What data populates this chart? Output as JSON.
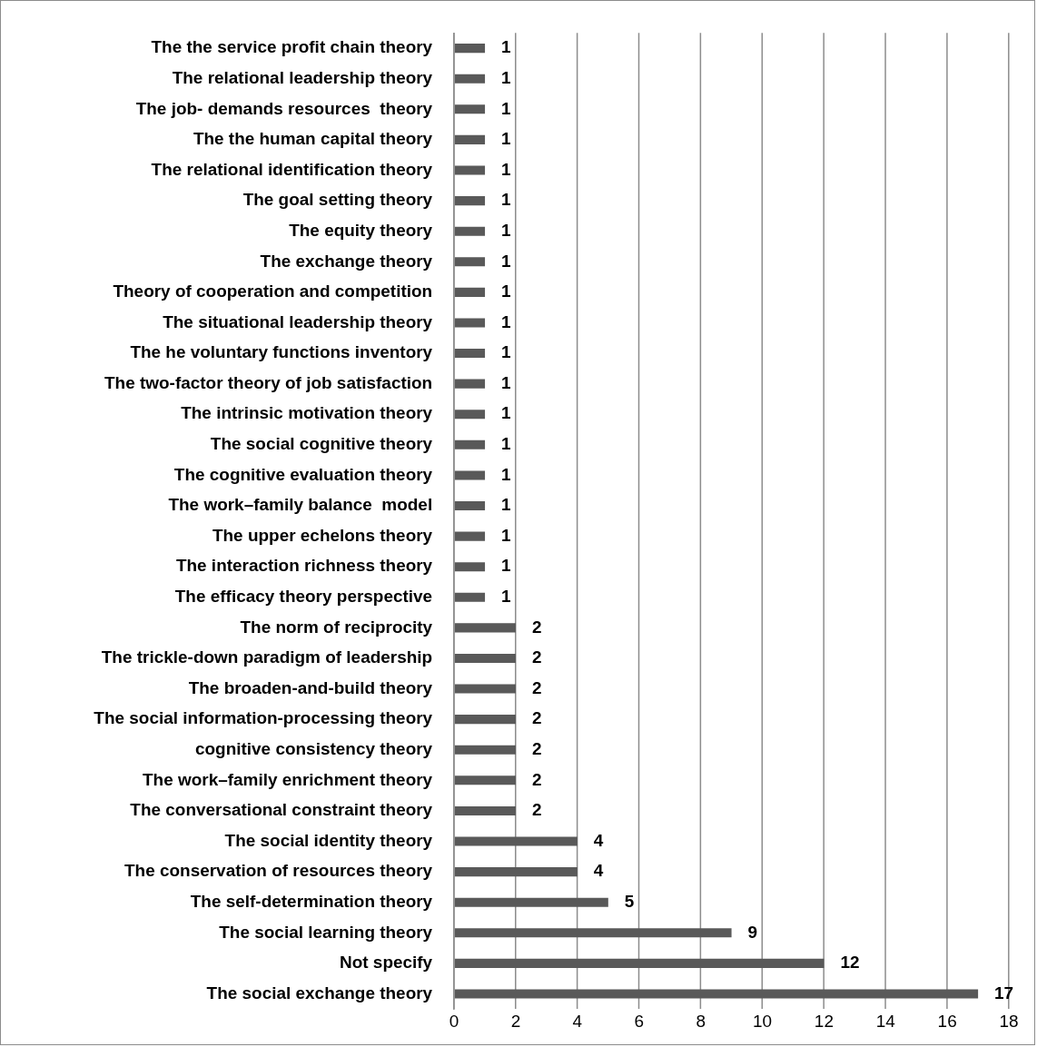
{
  "chart_data": {
    "type": "bar",
    "orientation": "horizontal",
    "categories": [
      "The the service profit chain theory",
      "The relational leadership theory",
      "The job- demands resources  theory",
      "The the human capital theory",
      "The relational identification theory",
      "The goal setting theory",
      "The equity theory",
      "The exchange theory",
      "Theory of cooperation and competition",
      "The situational leadership theory",
      "The he voluntary functions inventory",
      "The two-factor theory of job satisfaction",
      "The intrinsic motivation theory",
      "The social cognitive theory",
      "The cognitive evaluation theory",
      "The work–family balance  model",
      "The upper echelons theory",
      "The interaction richness theory",
      "The efficacy theory perspective",
      "The norm of reciprocity",
      "The trickle-down paradigm of leadership",
      "The broaden-and-build theory",
      "The social information-processing theory",
      "cognitive consistency theory",
      "The work–family enrichment theory",
      "The conversational constraint theory",
      "The social identity theory",
      "The conservation of resources theory",
      "The self-determination theory",
      "The social learning theory",
      "Not specify",
      "The social exchange theory"
    ],
    "values": [
      1,
      1,
      1,
      1,
      1,
      1,
      1,
      1,
      1,
      1,
      1,
      1,
      1,
      1,
      1,
      1,
      1,
      1,
      1,
      2,
      2,
      2,
      2,
      2,
      2,
      2,
      4,
      4,
      5,
      9,
      12,
      17
    ],
    "color": "#595959",
    "xlim": [
      0,
      18
    ],
    "xticks": [
      0,
      2,
      4,
      6,
      8,
      10,
      12,
      14,
      16,
      18
    ],
    "grid": "x",
    "legend": false,
    "data_labels": true
  }
}
